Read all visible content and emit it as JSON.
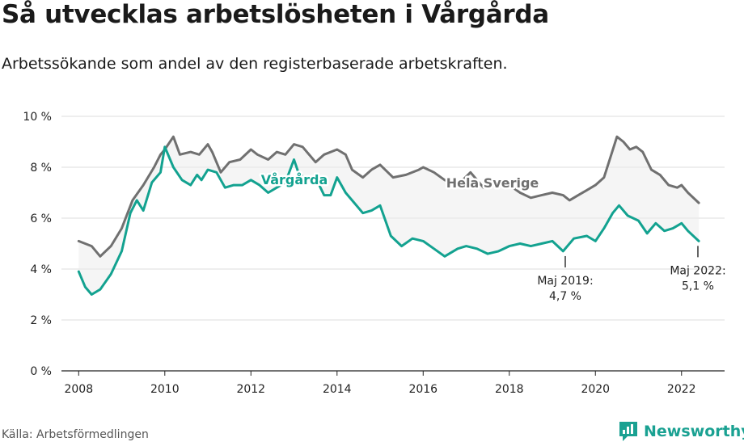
{
  "title": "Så utvecklas arbetslösheten i Vårgårda",
  "subtitle": "Arbetssökande som andel av den registerbaserade arbetskraften.",
  "source": "Källa: Arbetsförmedlingen",
  "brand": "Newsworthy",
  "colors": {
    "sverige": "#707070",
    "vargarda": "#13a290",
    "band": "#ececec",
    "grid": "#dcdcdc"
  },
  "chart_data": {
    "type": "line",
    "ylim": [
      0,
      10
    ],
    "xlim": [
      2007.6,
      2023.0
    ],
    "yticks": [
      0,
      2,
      4,
      6,
      8,
      10
    ],
    "ytick_labels": [
      "0 %",
      "2 %",
      "4 %",
      "6 %",
      "8 %",
      "10 %"
    ],
    "xticks": [
      2008,
      2010,
      2012,
      2014,
      2016,
      2018,
      2020,
      2022
    ],
    "xtick_labels": [
      "2008",
      "2010",
      "2012",
      "2014",
      "2016",
      "2018",
      "2020",
      "2022"
    ],
    "series": [
      {
        "name": "Hela Sverige",
        "x": [
          2008.0,
          2008.3,
          2008.5,
          2008.75,
          2009.0,
          2009.25,
          2009.5,
          2009.75,
          2009.9,
          2010.0,
          2010.2,
          2010.35,
          2010.6,
          2010.8,
          2011.0,
          2011.1,
          2011.3,
          2011.5,
          2011.75,
          2012.0,
          2012.15,
          2012.4,
          2012.6,
          2012.8,
          2013.0,
          2013.2,
          2013.5,
          2013.7,
          2014.0,
          2014.2,
          2014.35,
          2014.6,
          2014.8,
          2015.0,
          2015.3,
          2015.6,
          2015.9,
          2016.0,
          2016.25,
          2016.5,
          2016.8,
          2017.1,
          2017.4,
          2017.7,
          2018.0,
          2018.25,
          2018.5,
          2018.75,
          2019.0,
          2019.25,
          2019.4,
          2019.6,
          2019.8,
          2020.0,
          2020.2,
          2020.35,
          2020.5,
          2020.65,
          2020.8,
          2020.95,
          2021.1,
          2021.3,
          2021.5,
          2021.7,
          2021.9,
          2022.0,
          2022.15,
          2022.4
        ],
        "values": [
          5.1,
          4.9,
          4.5,
          4.9,
          5.6,
          6.7,
          7.3,
          8.0,
          8.5,
          8.7,
          9.2,
          8.5,
          8.6,
          8.5,
          8.9,
          8.6,
          7.8,
          8.2,
          8.3,
          8.7,
          8.5,
          8.3,
          8.6,
          8.5,
          8.9,
          8.8,
          8.2,
          8.5,
          8.7,
          8.5,
          7.9,
          7.6,
          7.9,
          8.1,
          7.6,
          7.7,
          7.9,
          8.0,
          7.8,
          7.5,
          7.3,
          7.8,
          7.2,
          7.3,
          7.3,
          7.0,
          6.8,
          6.9,
          7.0,
          6.9,
          6.7,
          6.9,
          7.1,
          7.3,
          7.6,
          8.4,
          9.2,
          9.0,
          8.7,
          8.8,
          8.6,
          7.9,
          7.7,
          7.3,
          7.2,
          7.3,
          7.0,
          6.6
        ]
      },
      {
        "name": "Vårgårda",
        "x": [
          2008.0,
          2008.15,
          2008.3,
          2008.5,
          2008.75,
          2009.0,
          2009.2,
          2009.35,
          2009.5,
          2009.7,
          2009.9,
          2010.0,
          2010.2,
          2010.4,
          2010.6,
          2010.75,
          2010.85,
          2011.0,
          2011.2,
          2011.4,
          2011.6,
          2011.8,
          2012.0,
          2012.2,
          2012.4,
          2012.6,
          2012.8,
          2013.0,
          2013.1,
          2013.3,
          2013.5,
          2013.7,
          2013.85,
          2014.0,
          2014.2,
          2014.4,
          2014.6,
          2014.8,
          2015.0,
          2015.25,
          2015.5,
          2015.75,
          2016.0,
          2016.25,
          2016.5,
          2016.8,
          2017.0,
          2017.25,
          2017.5,
          2017.75,
          2018.0,
          2018.25,
          2018.5,
          2018.75,
          2019.0,
          2019.25,
          2019.5,
          2019.8,
          2020.0,
          2020.2,
          2020.4,
          2020.55,
          2020.75,
          2021.0,
          2021.2,
          2021.4,
          2021.6,
          2021.8,
          2022.0,
          2022.15,
          2022.4
        ],
        "values": [
          3.9,
          3.3,
          3.0,
          3.2,
          3.8,
          4.7,
          6.2,
          6.7,
          6.3,
          7.4,
          7.8,
          8.8,
          8.0,
          7.5,
          7.3,
          7.7,
          7.5,
          7.9,
          7.8,
          7.2,
          7.3,
          7.3,
          7.5,
          7.3,
          7.0,
          7.2,
          7.4,
          8.3,
          7.8,
          7.5,
          7.6,
          6.9,
          6.9,
          7.6,
          7.0,
          6.6,
          6.2,
          6.3,
          6.5,
          5.3,
          4.9,
          5.2,
          5.1,
          4.8,
          4.5,
          4.8,
          4.9,
          4.8,
          4.6,
          4.7,
          4.9,
          5.0,
          4.9,
          5.0,
          5.1,
          4.7,
          5.2,
          5.3,
          5.1,
          5.6,
          6.2,
          6.5,
          6.1,
          5.9,
          5.4,
          5.8,
          5.5,
          5.6,
          5.8,
          5.5,
          5.1
        ]
      }
    ],
    "labels": {
      "sverige": "Hela Sverige",
      "vargarda": "Vårgårda"
    },
    "annotations": [
      {
        "x": 2019.3,
        "y": 4.7,
        "line1": "Maj 2019:",
        "line2": "4,7 %"
      },
      {
        "x": 2022.38,
        "y": 5.1,
        "line1": "Maj 2022:",
        "line2": "5,1 %"
      }
    ]
  }
}
